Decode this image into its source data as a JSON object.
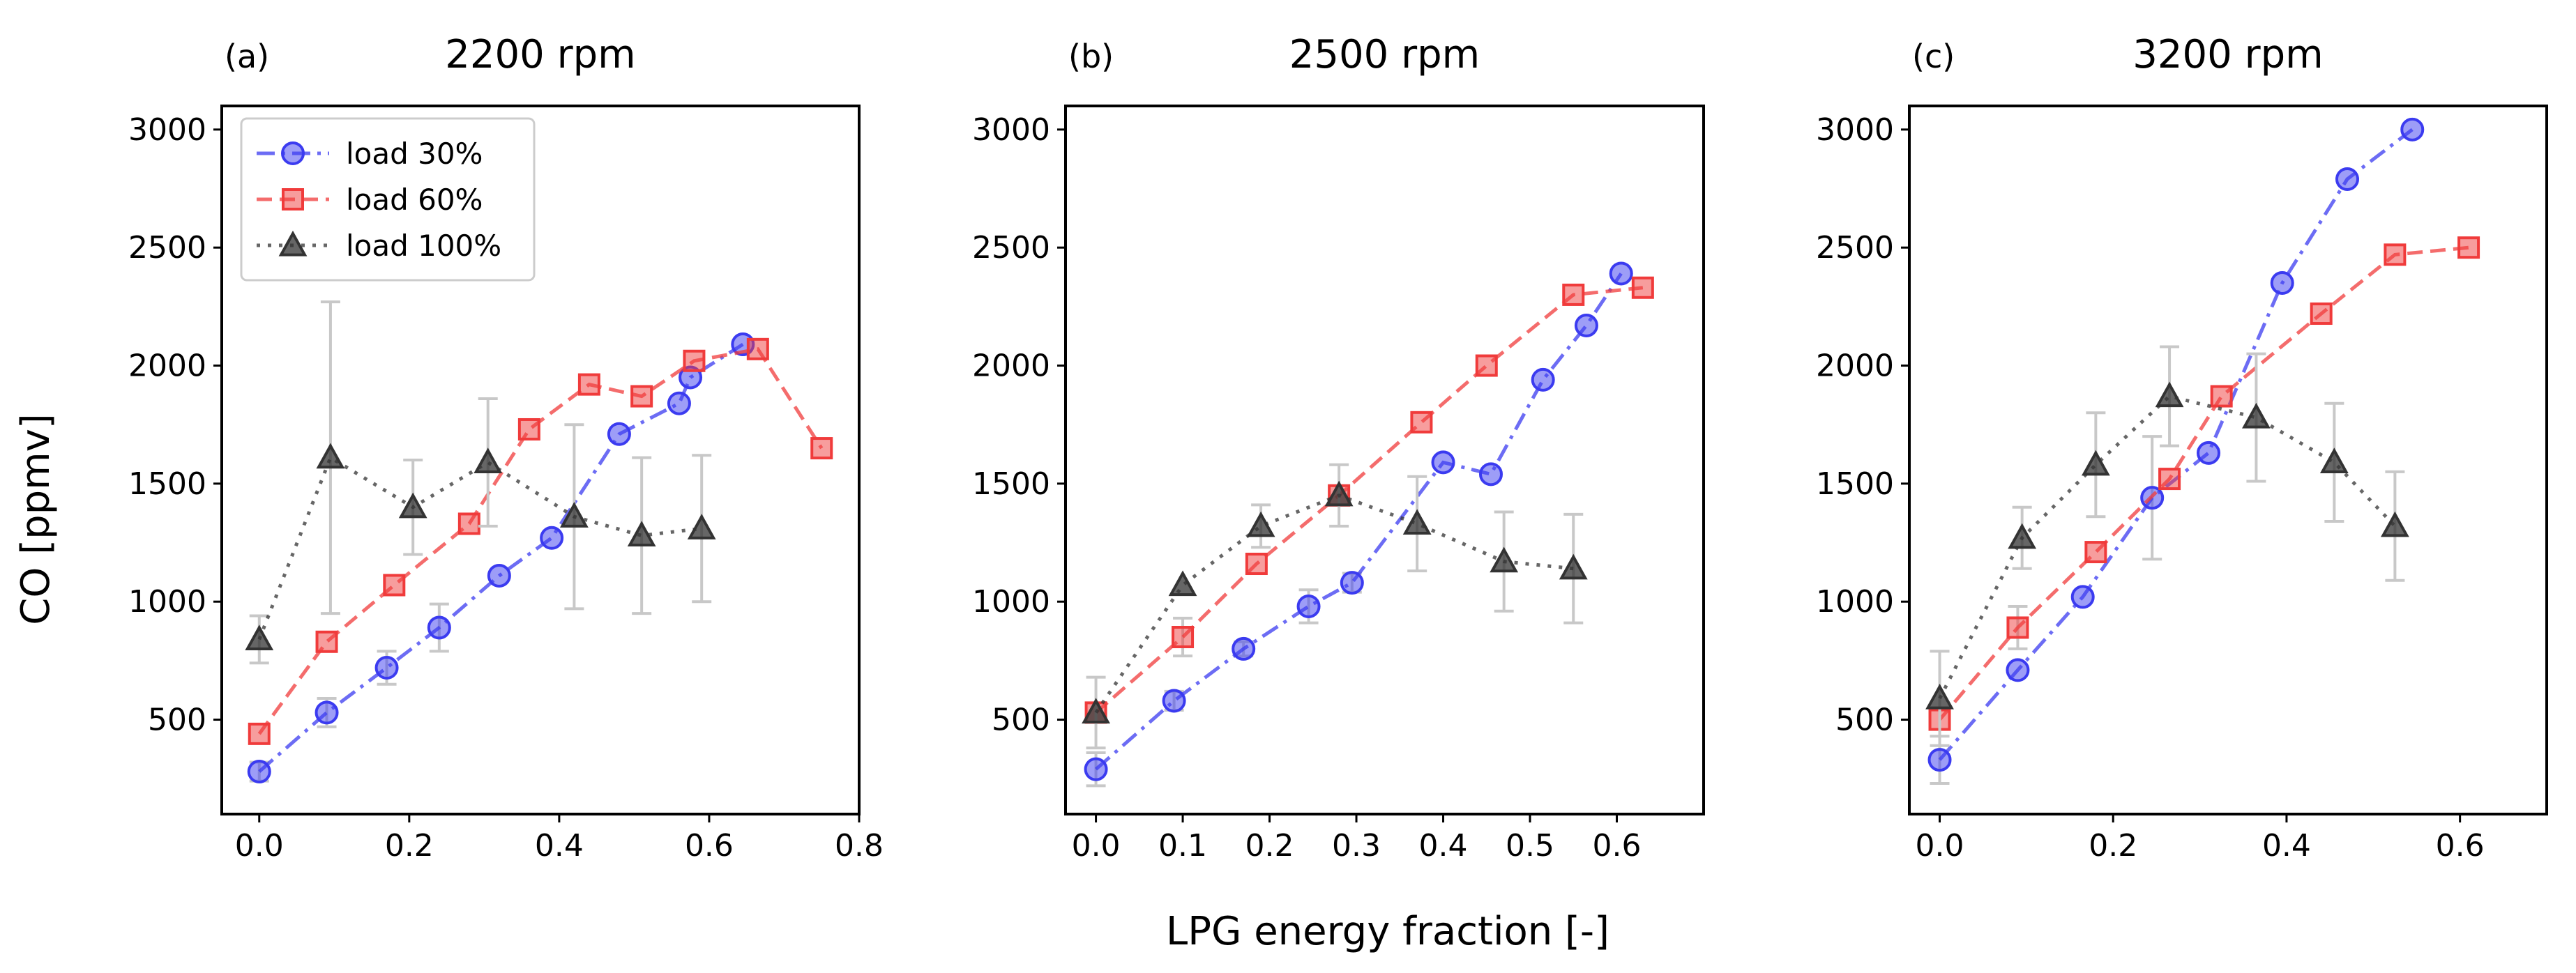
{
  "figure": {
    "ylabel": "CO [ppmv]",
    "xlabel": "LPG energy fraction [-]"
  },
  "legend": {
    "entries": [
      "load 30%",
      "load 60%",
      "load 100%"
    ],
    "placement": "upper-left of panel (a)"
  },
  "styles": {
    "load30": {
      "color": "#3b3bf0",
      "marker": "circle",
      "dash": "dashdot"
    },
    "load60": {
      "color": "#f03b3b",
      "marker": "square",
      "dash": "dashed"
    },
    "load100": {
      "color": "#333333",
      "marker": "triangle",
      "dash": "dotted"
    },
    "errorbar": "#c8c8c8"
  },
  "chart_data": [
    {
      "type": "line",
      "tag": "(a)",
      "title": "2200 rpm",
      "xlim": [
        -0.05,
        0.8
      ],
      "ylim": [
        100,
        3100
      ],
      "xticks": [
        "0.0",
        "0.2",
        "0.4",
        "0.6",
        "0.8"
      ],
      "yticks": [
        "500",
        "1000",
        "1500",
        "2000",
        "2500",
        "3000"
      ],
      "show_legend": true,
      "series": [
        {
          "name": "load 30%",
          "key": "load30",
          "x": [
            0.0,
            0.09,
            0.17,
            0.24,
            0.32,
            0.39,
            0.48,
            0.56,
            0.575,
            0.645
          ],
          "y": [
            280,
            530,
            720,
            890,
            1110,
            1270,
            1710,
            1840,
            1950,
            2090
          ],
          "err": [
            40,
            60,
            70,
            100,
            0,
            0,
            0,
            0,
            0,
            0
          ]
        },
        {
          "name": "load 60%",
          "key": "load60",
          "x": [
            0.0,
            0.09,
            0.18,
            0.28,
            0.36,
            0.44,
            0.51,
            0.58,
            0.665,
            0.75
          ],
          "y": [
            440,
            830,
            1070,
            1330,
            1730,
            1920,
            1870,
            2020,
            2070,
            1650
          ],
          "err": [
            0,
            0,
            0,
            0,
            0,
            0,
            0,
            0,
            0,
            0
          ]
        },
        {
          "name": "load 100%",
          "key": "load100",
          "x": [
            0.0,
            0.095,
            0.205,
            0.305,
            0.42,
            0.51,
            0.59
          ],
          "y": [
            840,
            1610,
            1400,
            1590,
            1360,
            1280,
            1310
          ],
          "err": [
            100,
            660,
            200,
            270,
            390,
            330,
            310
          ]
        }
      ]
    },
    {
      "type": "line",
      "tag": "(b)",
      "title": "2500 rpm",
      "xlim": [
        -0.035,
        0.7
      ],
      "ylim": [
        100,
        3100
      ],
      "xticks": [
        "0.0",
        "0.1",
        "0.2",
        "0.3",
        "0.4",
        "0.5",
        "0.6"
      ],
      "yticks": [
        "500",
        "1000",
        "1500",
        "2000",
        "2500",
        "3000"
      ],
      "show_legend": false,
      "series": [
        {
          "name": "load 30%",
          "key": "load30",
          "x": [
            0.0,
            0.09,
            0.17,
            0.245,
            0.295,
            0.4,
            0.455,
            0.515,
            0.565,
            0.605
          ],
          "y": [
            290,
            580,
            800,
            980,
            1080,
            1590,
            1540,
            1940,
            2170,
            2390
          ],
          "err": [
            70,
            40,
            30,
            70,
            40,
            0,
            0,
            0,
            0,
            0
          ]
        },
        {
          "name": "load 60%",
          "key": "load60",
          "x": [
            0.0,
            0.1,
            0.185,
            0.28,
            0.375,
            0.45,
            0.55,
            0.63
          ],
          "y": [
            530,
            850,
            1160,
            1450,
            1760,
            2000,
            2300,
            2330
          ],
          "err": [
            0,
            80,
            0,
            0,
            0,
            0,
            0,
            0
          ]
        },
        {
          "name": "load 100%",
          "key": "load100",
          "x": [
            0.0,
            0.1,
            0.19,
            0.28,
            0.37,
            0.47,
            0.55
          ],
          "y": [
            530,
            1070,
            1320,
            1450,
            1330,
            1170,
            1140
          ],
          "err": [
            150,
            0,
            90,
            130,
            200,
            210,
            230
          ]
        }
      ]
    },
    {
      "type": "line",
      "tag": "(c)",
      "title": "3200 rpm",
      "xlim": [
        -0.035,
        0.7
      ],
      "ylim": [
        100,
        3100
      ],
      "xticks": [
        "0.0",
        "0.2",
        "0.4",
        "0.6"
      ],
      "yticks": [
        "500",
        "1000",
        "1500",
        "2000",
        "2500",
        "3000"
      ],
      "show_legend": false,
      "series": [
        {
          "name": "load 30%",
          "key": "load30",
          "x": [
            0.0,
            0.09,
            0.165,
            0.245,
            0.31,
            0.395,
            0.47,
            0.545
          ],
          "y": [
            330,
            710,
            1020,
            1440,
            1630,
            2350,
            2790,
            3000
          ],
          "err": [
            100,
            0,
            0,
            260,
            0,
            0,
            0,
            0
          ]
        },
        {
          "name": "load 60%",
          "key": "load60",
          "x": [
            0.0,
            0.09,
            0.18,
            0.265,
            0.325,
            0.44,
            0.525,
            0.61
          ],
          "y": [
            500,
            890,
            1210,
            1520,
            1870,
            2220,
            2470,
            2500
          ],
          "err": [
            0,
            90,
            0,
            0,
            0,
            0,
            0,
            0
          ]
        },
        {
          "name": "load 100%",
          "key": "load100",
          "x": [
            0.0,
            0.095,
            0.18,
            0.265,
            0.365,
            0.455,
            0.525
          ],
          "y": [
            590,
            1270,
            1580,
            1870,
            1780,
            1590,
            1320
          ],
          "err": [
            200,
            130,
            220,
            210,
            270,
            250,
            230
          ]
        }
      ]
    }
  ]
}
